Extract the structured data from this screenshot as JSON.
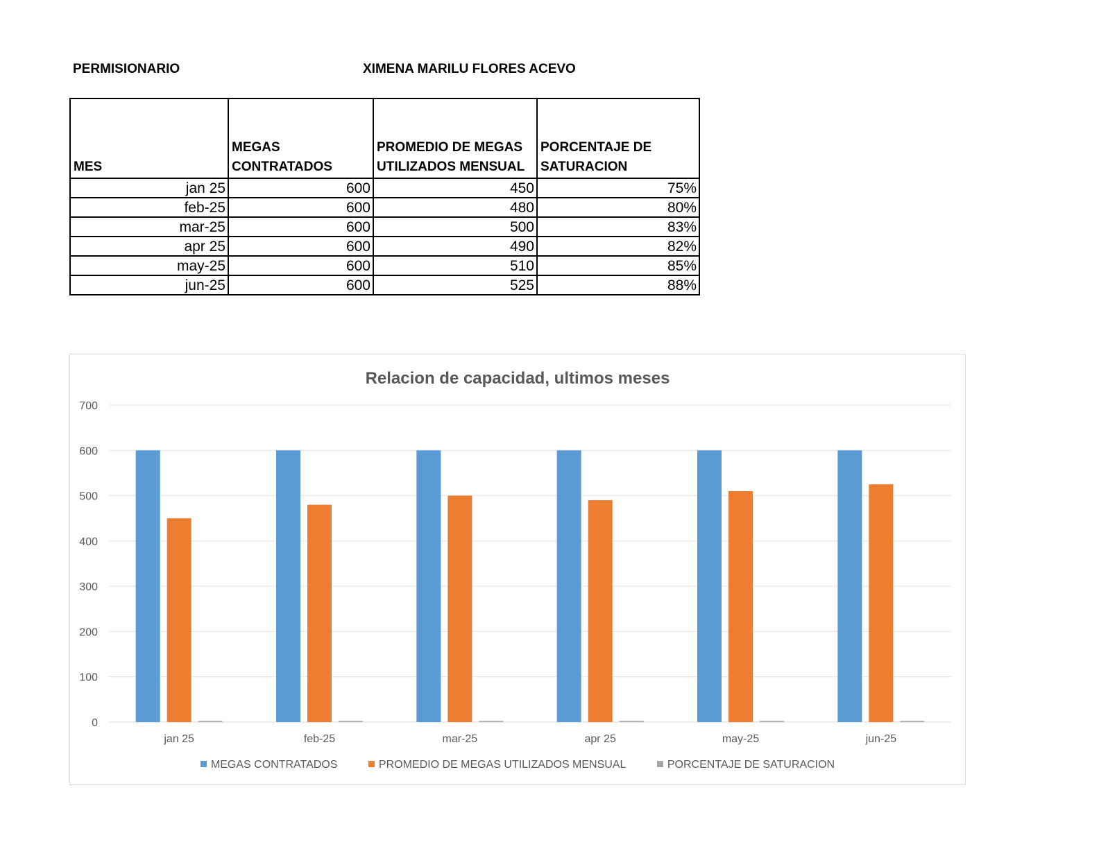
{
  "header": {
    "label": "PERMISIONARIO",
    "value": "XIMENA MARILU FLORES ACEVO"
  },
  "table": {
    "columns": [
      "MES",
      "MEGAS CONTRATADOS",
      "PROMEDIO DE MEGAS UTILIZADOS MENSUAL",
      "PORCENTAJE DE SATURACION"
    ],
    "rows": [
      {
        "mes": "jan 25",
        "contratados": "600",
        "promedio": "450",
        "porcentaje": "75%"
      },
      {
        "mes": "feb-25",
        "contratados": "600",
        "promedio": "480",
        "porcentaje": "80%"
      },
      {
        "mes": "mar-25",
        "contratados": "600",
        "promedio": "500",
        "porcentaje": "83%"
      },
      {
        "mes": "apr 25",
        "contratados": "600",
        "promedio": "490",
        "porcentaje": "82%"
      },
      {
        "mes": "may-25",
        "contratados": "600",
        "promedio": "510",
        "porcentaje": "85%"
      },
      {
        "mes": "jun-25",
        "contratados": "600",
        "promedio": "525",
        "porcentaje": "88%"
      }
    ]
  },
  "chart_data": {
    "type": "bar",
    "title": "Relacion de capacidad, ultimos meses",
    "categories": [
      "jan 25",
      "feb-25",
      "mar-25",
      "apr 25",
      "may-25",
      "jun-25"
    ],
    "series": [
      {
        "name": "MEGAS CONTRATADOS",
        "color": "#5b9bd5",
        "values": [
          600,
          600,
          600,
          600,
          600,
          600
        ]
      },
      {
        "name": "PROMEDIO DE MEGAS UTILIZADOS MENSUAL",
        "color": "#ed7d31",
        "values": [
          450,
          480,
          500,
          490,
          510,
          525
        ]
      },
      {
        "name": "PORCENTAJE DE SATURACION",
        "color": "#a5a5a5",
        "values": [
          0.75,
          0.8,
          0.83,
          0.82,
          0.85,
          0.88
        ]
      }
    ],
    "ylim": [
      0,
      700
    ],
    "yticks": [
      0,
      100,
      200,
      300,
      400,
      500,
      600,
      700
    ],
    "grid": true,
    "legend_position": "bottom",
    "xlabel": "",
    "ylabel": ""
  }
}
